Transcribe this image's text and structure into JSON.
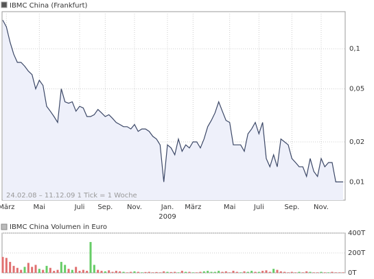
{
  "chart_data": [
    {
      "type": "line",
      "title": "IBMC China (Frankfurt)",
      "annotation": "24.02.08 – 11.12.09   1 Tick = 1 Woche",
      "x_sublabel": "2009",
      "log_scale": true,
      "grid": true,
      "color": "#3b4766",
      "fill": "#eef0fa",
      "categories": [
        null,
        "März",
        null,
        null,
        null,
        null,
        null,
        null,
        null,
        null,
        "Mai",
        null,
        null,
        null,
        null,
        null,
        null,
        null,
        null,
        null,
        null,
        "Juli",
        null,
        null,
        null,
        null,
        null,
        null,
        "Sep.",
        null,
        null,
        null,
        null,
        null,
        null,
        null,
        "Nov.",
        null,
        null,
        null,
        null,
        null,
        null,
        null,
        null,
        "Jan.",
        null,
        null,
        null,
        null,
        null,
        null,
        "März",
        null,
        null,
        null,
        null,
        null,
        null,
        null,
        null,
        null,
        "Mai",
        null,
        null,
        null,
        null,
        null,
        null,
        null,
        "Juli",
        null,
        null,
        null,
        null,
        null,
        null,
        null,
        null,
        "Sep.",
        null,
        null,
        null,
        null,
        null,
        null,
        null,
        "Nov.",
        null,
        null,
        null,
        null,
        null,
        null
      ],
      "values": [
        0.164,
        0.146,
        0.112,
        0.091,
        0.079,
        0.079,
        0.074,
        0.068,
        0.064,
        0.05,
        0.058,
        0.053,
        0.037,
        0.034,
        0.031,
        0.028,
        0.05,
        0.04,
        0.039,
        0.04,
        0.034,
        0.037,
        0.036,
        0.031,
        0.031,
        0.032,
        0.035,
        0.033,
        0.031,
        0.032,
        0.03,
        0.028,
        0.027,
        0.026,
        0.026,
        0.025,
        0.027,
        0.024,
        0.025,
        0.025,
        0.024,
        0.022,
        0.021,
        0.019,
        0.01,
        0.019,
        0.018,
        0.016,
        0.021,
        0.017,
        0.019,
        0.018,
        0.02,
        0.02,
        0.018,
        0.021,
        0.026,
        0.029,
        0.033,
        0.04,
        0.034,
        0.029,
        0.028,
        0.019,
        0.019,
        0.019,
        0.017,
        0.023,
        0.025,
        0.028,
        0.023,
        0.028,
        0.015,
        0.013,
        0.016,
        0.013,
        0.021,
        0.02,
        0.019,
        0.015,
        0.014,
        0.013,
        0.013,
        0.011,
        0.015,
        0.012,
        0.011,
        0.015,
        0.013,
        0.014,
        0.014,
        0.01,
        0.01,
        0.01
      ],
      "ylim": [
        0.0073,
        0.19
      ],
      "yticks": [
        {
          "value": 0.01,
          "label": "0,01"
        },
        {
          "value": 0.02,
          "label": "0,02"
        },
        {
          "value": 0.05,
          "label": "0,05"
        },
        {
          "value": 0.1,
          "label": "0,1"
        }
      ]
    },
    {
      "type": "bar",
      "title": "IBMC China Volumen in Euro",
      "values": [
        160000,
        150000,
        110000,
        70000,
        50000,
        30000,
        60000,
        100000,
        60000,
        80000,
        40000,
        30000,
        70000,
        50000,
        20000,
        30000,
        110000,
        80000,
        40000,
        30000,
        60000,
        20000,
        30000,
        20000,
        310000,
        80000,
        30000,
        20000,
        15000,
        25000,
        10000,
        20000,
        15000,
        10000,
        5000,
        10000,
        15000,
        10000,
        5000,
        8000,
        10000,
        5000,
        8000,
        5000,
        15000,
        10000,
        8000,
        10000,
        5000,
        20000,
        10000,
        10000,
        5000,
        5000,
        10000,
        15000,
        20000,
        10000,
        10000,
        20000,
        10000,
        15000,
        5000,
        20000,
        10000,
        5000,
        15000,
        10000,
        20000,
        10000,
        10000,
        20000,
        25000,
        10000,
        40000,
        30000,
        15000,
        10000,
        5000,
        10000,
        5000,
        10000,
        5000,
        15000,
        10000,
        5000,
        5000,
        10000,
        5000,
        5000,
        10000,
        5000,
        5000,
        5000
      ],
      "colors": [
        "#e07070",
        "#e07070",
        "#e07070",
        "#e07070",
        "#e07070",
        "#e07070",
        "#66cc66",
        "#e07070",
        "#e07070",
        "#e07070",
        "#66cc66",
        "#e07070",
        "#66cc66",
        "#e07070",
        "#e07070",
        "#e07070",
        "#66cc66",
        "#66cc66",
        "#e07070",
        "#66cc66",
        "#e07070",
        "#e07070",
        "#e07070",
        "#e07070",
        "#66cc66",
        "#66cc66",
        "#e07070",
        "#e07070",
        "#66cc66",
        "#e07070",
        "#e07070",
        "#e07070",
        "#e07070",
        "#66cc66",
        "#e07070",
        "#e07070",
        "#66cc66",
        "#e07070",
        "#66cc66",
        "#e07070",
        "#e07070",
        "#e07070",
        "#e07070",
        "#e07070",
        "#e07070",
        "#66cc66",
        "#e07070",
        "#e07070",
        "#66cc66",
        "#e07070",
        "#66cc66",
        "#e07070",
        "#66cc66",
        "#e07070",
        "#e07070",
        "#66cc66",
        "#66cc66",
        "#66cc66",
        "#66cc66",
        "#66cc66",
        "#e07070",
        "#e07070",
        "#e07070",
        "#e07070",
        "#e07070",
        "#66cc66",
        "#e07070",
        "#66cc66",
        "#66cc66",
        "#e07070",
        "#66cc66",
        "#e07070",
        "#e07070",
        "#e07070",
        "#66cc66",
        "#e07070",
        "#e07070",
        "#e07070",
        "#e07070",
        "#e07070",
        "#e07070",
        "#66cc66",
        "#e07070",
        "#e07070",
        "#66cc66",
        "#e07070",
        "#e07070",
        "#66cc66",
        "#e07070",
        "#66cc66",
        "#e07070",
        "#e07070",
        "#e07070",
        "#e07070"
      ],
      "ylim": [
        0,
        400000
      ],
      "yticks": [
        {
          "value": 0,
          "label": "0T"
        },
        {
          "value": 200000,
          "label": "200T"
        },
        {
          "value": 400000,
          "label": "400T"
        }
      ]
    }
  ]
}
